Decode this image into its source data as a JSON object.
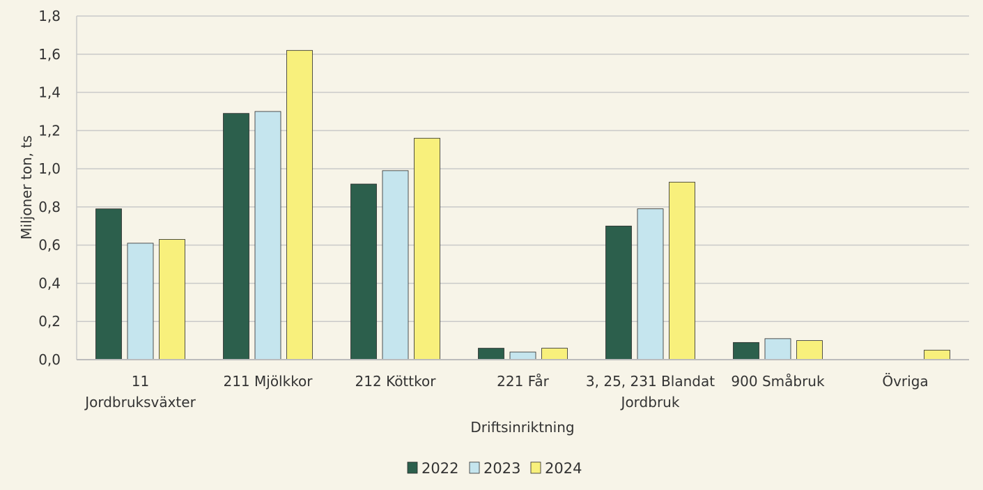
{
  "chart_data": {
    "type": "bar",
    "title": "",
    "xlabel": "Driftsinriktning",
    "ylabel": "Miljoner ton, ts",
    "ylim": [
      0,
      1.8
    ],
    "yticks": [
      "0,0",
      "0,2",
      "0,4",
      "0,6",
      "0,8",
      "1,0",
      "1,2",
      "1,4",
      "1,6",
      "1,8"
    ],
    "grid": true,
    "legend_position": "bottom",
    "categories": [
      [
        "11",
        "Jordbruksväxter"
      ],
      [
        "211 Mjölkkor"
      ],
      [
        "212 Köttkor"
      ],
      [
        "221 Får"
      ],
      [
        "3, 25, 231 Blandat",
        "Jordbruk"
      ],
      [
        "900 Småbruk"
      ],
      [
        "Övriga"
      ]
    ],
    "series": [
      {
        "name": "2022",
        "color": "#2c5f4c",
        "values": [
          0.79,
          1.29,
          0.92,
          0.06,
          0.7,
          0.09,
          null
        ]
      },
      {
        "name": "2023",
        "color": "#c5e5ee",
        "values": [
          0.61,
          1.3,
          0.99,
          0.04,
          0.79,
          0.11,
          null
        ]
      },
      {
        "name": "2024",
        "color": "#f8f07c",
        "values": [
          0.63,
          1.62,
          1.16,
          0.06,
          0.93,
          0.1,
          0.05
        ]
      }
    ]
  }
}
